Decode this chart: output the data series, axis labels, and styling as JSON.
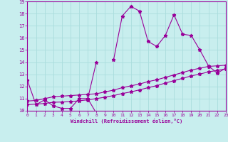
{
  "xlabel": "Windchill (Refroidissement éolien,°C)",
  "xlim": [
    0,
    23
  ],
  "ylim": [
    10,
    19
  ],
  "xticks": [
    0,
    1,
    2,
    3,
    4,
    5,
    6,
    7,
    8,
    9,
    10,
    11,
    12,
    13,
    14,
    15,
    16,
    17,
    18,
    19,
    20,
    21,
    22,
    23
  ],
  "yticks": [
    10,
    11,
    12,
    13,
    14,
    15,
    16,
    17,
    18,
    19
  ],
  "background_color": "#c8eeee",
  "line_color": "#990099",
  "grid_color": "#aadddd",
  "lines": [
    {
      "x": [
        0,
        1,
        2,
        3,
        4,
        5,
        6,
        7,
        8,
        9,
        10,
        11,
        12,
        13,
        14,
        15,
        16,
        17,
        18,
        19,
        20,
        21,
        22,
        23
      ],
      "y": [
        12.5,
        10.5,
        10.9,
        10.4,
        10.2,
        10.2,
        11.0,
        11.0,
        9.8,
        null,
        14.2,
        17.8,
        18.6,
        18.2,
        15.7,
        15.3,
        16.2,
        17.9,
        16.3,
        16.2,
        15.0,
        13.7,
        13.1,
        13.5
      ]
    },
    {
      "x": [
        7,
        8
      ],
      "y": [
        11.0,
        14.0
      ]
    },
    {
      "x": [
        0,
        1,
        2,
        3,
        4,
        5,
        6,
        7,
        8,
        9,
        10,
        11,
        12,
        13,
        14,
        15,
        16,
        17,
        18,
        19,
        20,
        21,
        22,
        23
      ],
      "y": [
        10.8,
        10.85,
        11.0,
        11.15,
        11.2,
        11.25,
        11.3,
        11.35,
        11.4,
        11.55,
        11.7,
        11.9,
        12.05,
        12.2,
        12.4,
        12.55,
        12.75,
        12.95,
        13.15,
        13.35,
        13.5,
        13.65,
        13.7,
        13.75
      ]
    },
    {
      "x": [
        0,
        1,
        2,
        3,
        4,
        5,
        6,
        7,
        8,
        9,
        10,
        11,
        12,
        13,
        14,
        15,
        16,
        17,
        18,
        19,
        20,
        21,
        22,
        23
      ],
      "y": [
        10.5,
        10.55,
        10.6,
        10.7,
        10.72,
        10.75,
        10.82,
        10.9,
        11.0,
        11.12,
        11.25,
        11.42,
        11.55,
        11.72,
        11.9,
        12.07,
        12.28,
        12.48,
        12.67,
        12.87,
        13.02,
        13.2,
        13.32,
        13.45
      ]
    }
  ]
}
